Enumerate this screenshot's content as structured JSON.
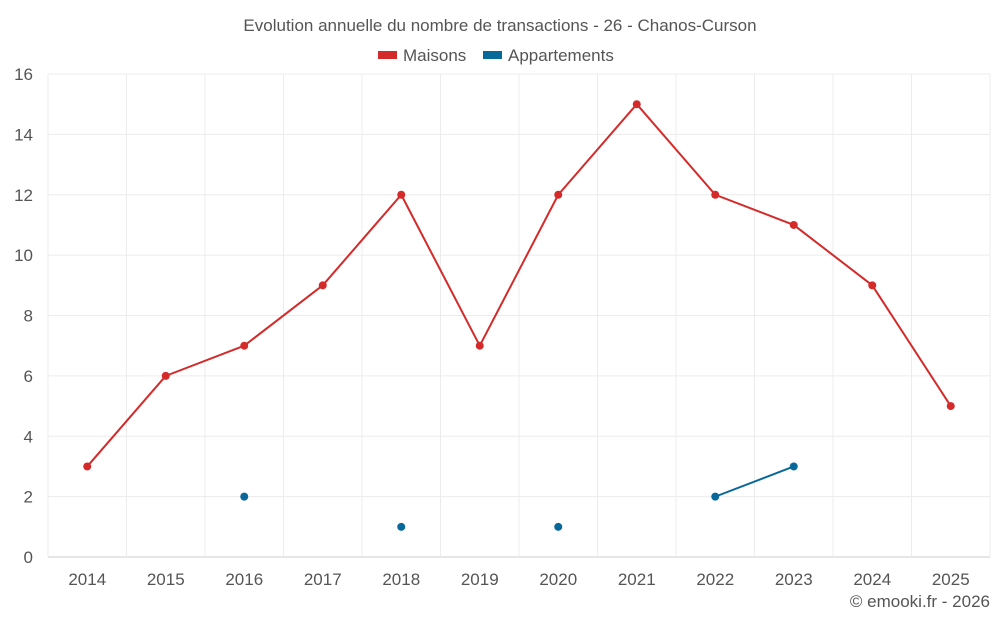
{
  "chart_data": {
    "type": "line",
    "title": "Evolution annuelle du nombre de transactions - 26 - Chanos-Curson",
    "categories": [
      "2014",
      "2015",
      "2016",
      "2017",
      "2018",
      "2019",
      "2020",
      "2021",
      "2022",
      "2023",
      "2024",
      "2025"
    ],
    "series": [
      {
        "name": "Maisons",
        "color": "#d42a2a",
        "values": [
          3,
          6,
          7,
          9,
          12,
          7,
          12,
          15,
          12,
          11,
          9,
          5
        ]
      },
      {
        "name": "Appartements",
        "color": "#08689a",
        "values": [
          null,
          null,
          2,
          null,
          1,
          null,
          1,
          null,
          2,
          3,
          null,
          null
        ]
      }
    ],
    "ylim": [
      0,
      16
    ],
    "yticks": [
      0,
      2,
      4,
      6,
      8,
      10,
      12,
      14,
      16
    ],
    "xlabel": "",
    "ylabel": "",
    "legend_position": "top-center",
    "grid": true
  },
  "credit": "© emooki.fr - 2026"
}
